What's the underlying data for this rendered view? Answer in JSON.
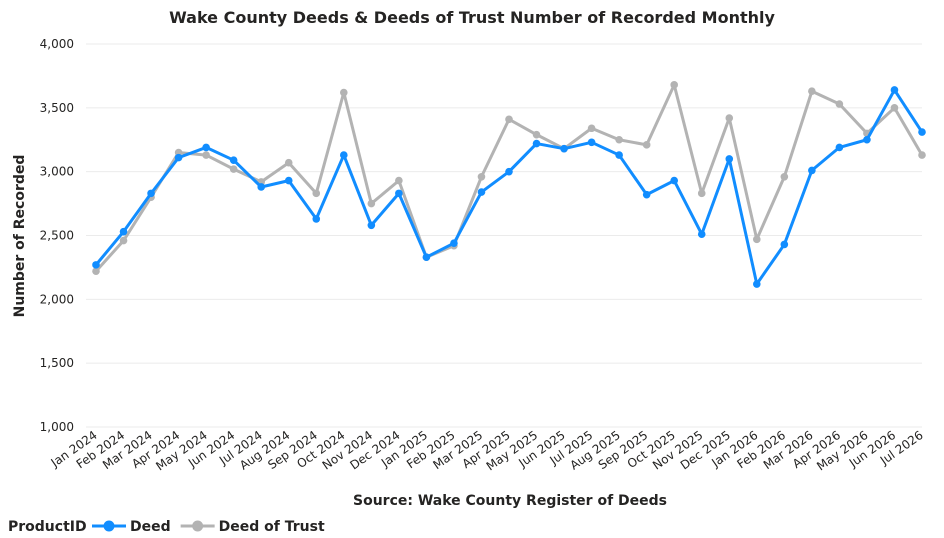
{
  "chart_data": {
    "type": "line",
    "title": "Wake County Deeds & Deeds of Trust Number of Recorded Monthly",
    "xlabel": "Source: Wake County Register of Deeds",
    "ylabel": "Number of Recorded",
    "ylim": [
      1000,
      4000
    ],
    "yticks": [
      1000,
      1500,
      2000,
      2500,
      3000,
      3500,
      4000
    ],
    "ytick_labels": [
      "1,000",
      "1,500",
      "2,000",
      "2,500",
      "3,000",
      "3,500",
      "4,000"
    ],
    "grid": true,
    "legend": {
      "title": "ProductID",
      "placement": "bottom-left"
    },
    "categories": [
      "Jan 2024",
      "Feb 2024",
      "Mar 2024",
      "Apr 2024",
      "May 2024",
      "Jun 2024",
      "Jul 2024",
      "Aug 2024",
      "Sep 2024",
      "Oct 2024",
      "Nov 2024",
      "Dec 2024",
      "Jan 2025",
      "Feb 2025",
      "Mar 2025",
      "Apr 2025",
      "May 2025",
      "Jun 2025",
      "Jul 2025",
      "Aug 2025",
      "Sep 2025",
      "Oct 2025",
      "Nov 2025",
      "Dec 2025",
      "Jan 2026",
      "Feb 2026",
      "Mar 2026",
      "Apr 2026",
      "May 2026",
      "Jun 2026",
      "Jul 2026"
    ],
    "series": [
      {
        "name": "Deed",
        "color": "#118dff",
        "values": [
          2270,
          2530,
          2830,
          3110,
          3190,
          3090,
          2880,
          2930,
          2630,
          3130,
          2580,
          2830,
          2330,
          2440,
          2840,
          3000,
          3220,
          3180,
          3230,
          3130,
          2820,
          2930,
          2510,
          3100,
          2120,
          2430,
          3010,
          3190,
          3250,
          3640,
          3310
        ]
      },
      {
        "name": "Deed of Trust",
        "color": "#b3b3b3",
        "values": [
          2220,
          2460,
          2800,
          3150,
          3130,
          3020,
          2920,
          3070,
          2830,
          3620,
          2750,
          2930,
          2330,
          2420,
          2960,
          3410,
          3290,
          3180,
          3340,
          3250,
          3210,
          3680,
          2830,
          3420,
          2470,
          2960,
          3630,
          3530,
          3300,
          3500,
          3130
        ]
      }
    ]
  }
}
